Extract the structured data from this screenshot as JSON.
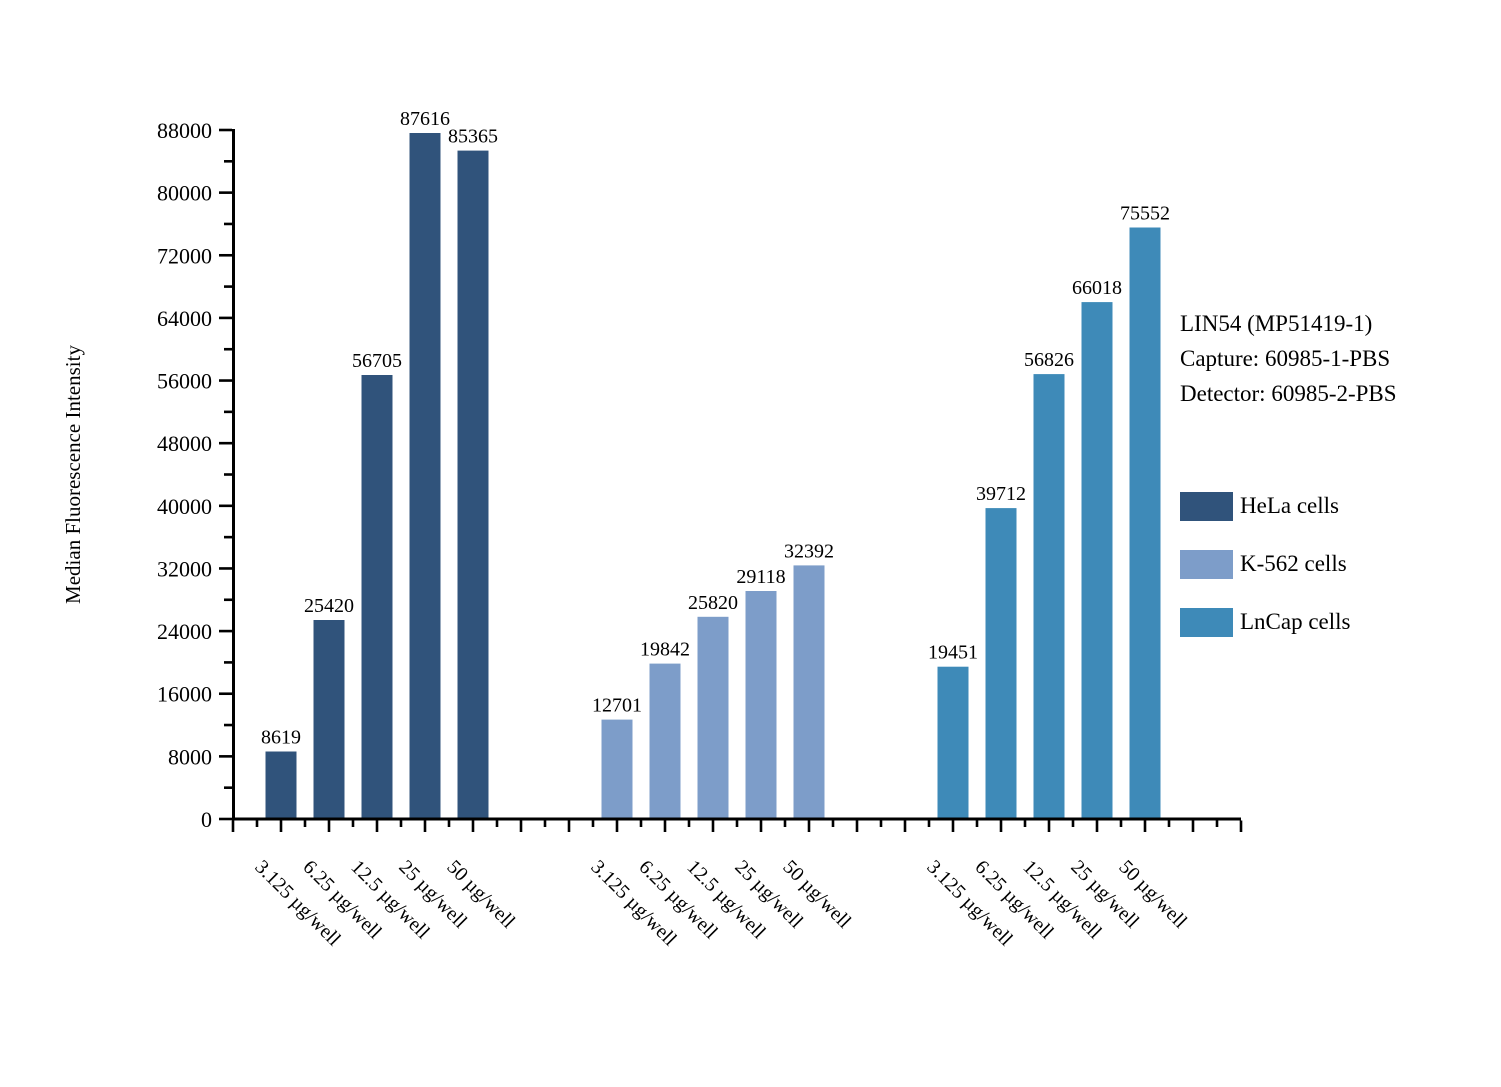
{
  "figure": {
    "background": "#ffffff"
  },
  "annotation": {
    "lines": [
      "LIN54 (MP51419-1)",
      "Capture: 60985-1-PBS",
      "Detector: 60985-2-PBS"
    ]
  },
  "chart_data": {
    "type": "bar",
    "title": "",
    "xlabel": "",
    "ylabel": "Median Fluorescence Intensity",
    "ylim": [
      0,
      88000
    ],
    "ytick_step": 8000,
    "yminor_step": 4000,
    "grid": false,
    "legend_position": "right-outside",
    "bar_value_labels": true,
    "axis_color": "#000000",
    "text_color": "#000000",
    "categories": [
      "3.125 µg/well",
      "6.25 µg/well",
      "12.5 µg/well",
      "25 µg/well",
      "50 µg/well"
    ],
    "series": [
      {
        "name": "HeLa cells",
        "color": "#30537B",
        "values": [
          8619,
          25420,
          56705,
          87616,
          85365
        ]
      },
      {
        "name": "K-562 cells",
        "color": "#7D9DC9",
        "values": [
          12701,
          19842,
          25820,
          29118,
          32392
        ]
      },
      {
        "name": "LnCap cells",
        "color": "#3E8AB8",
        "values": [
          19451,
          39712,
          56826,
          66018,
          75552
        ]
      }
    ]
  }
}
